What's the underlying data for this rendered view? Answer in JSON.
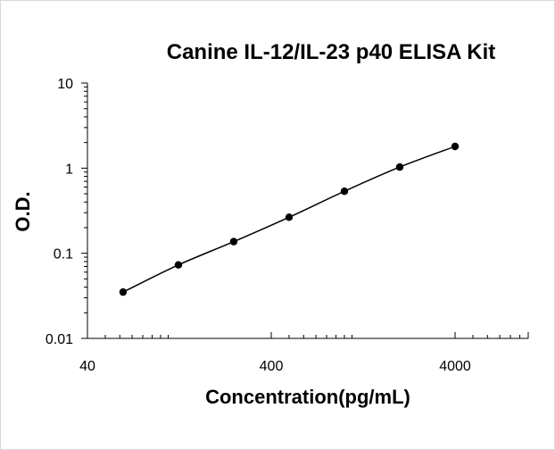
{
  "chart_data": {
    "type": "scatter",
    "title": "Canine IL-12/IL-23 p40 ELISA Kit",
    "xlabel": "Concentration(pg/mL)",
    "ylabel": "O.D.",
    "x_scale": "log",
    "y_scale": "log",
    "xlim": [
      40,
      10000
    ],
    "ylim": [
      0.01,
      10
    ],
    "x_ticks": [
      40,
      400,
      4000
    ],
    "y_ticks": [
      0.01,
      0.1,
      1,
      10
    ],
    "x_tick_labels": [
      "40",
      "400",
      "4000"
    ],
    "y_tick_labels": [
      "0.01",
      "0.1",
      "1",
      "10"
    ],
    "grid": false,
    "legend": "none",
    "series": [
      {
        "x": [
          62.5,
          125,
          250,
          500,
          1000,
          2000,
          4000
        ],
        "y": [
          0.035,
          0.073,
          0.137,
          0.265,
          0.535,
          1.03,
          1.8
        ],
        "marker": "circle",
        "line": "smooth",
        "color": "#000000"
      }
    ]
  }
}
